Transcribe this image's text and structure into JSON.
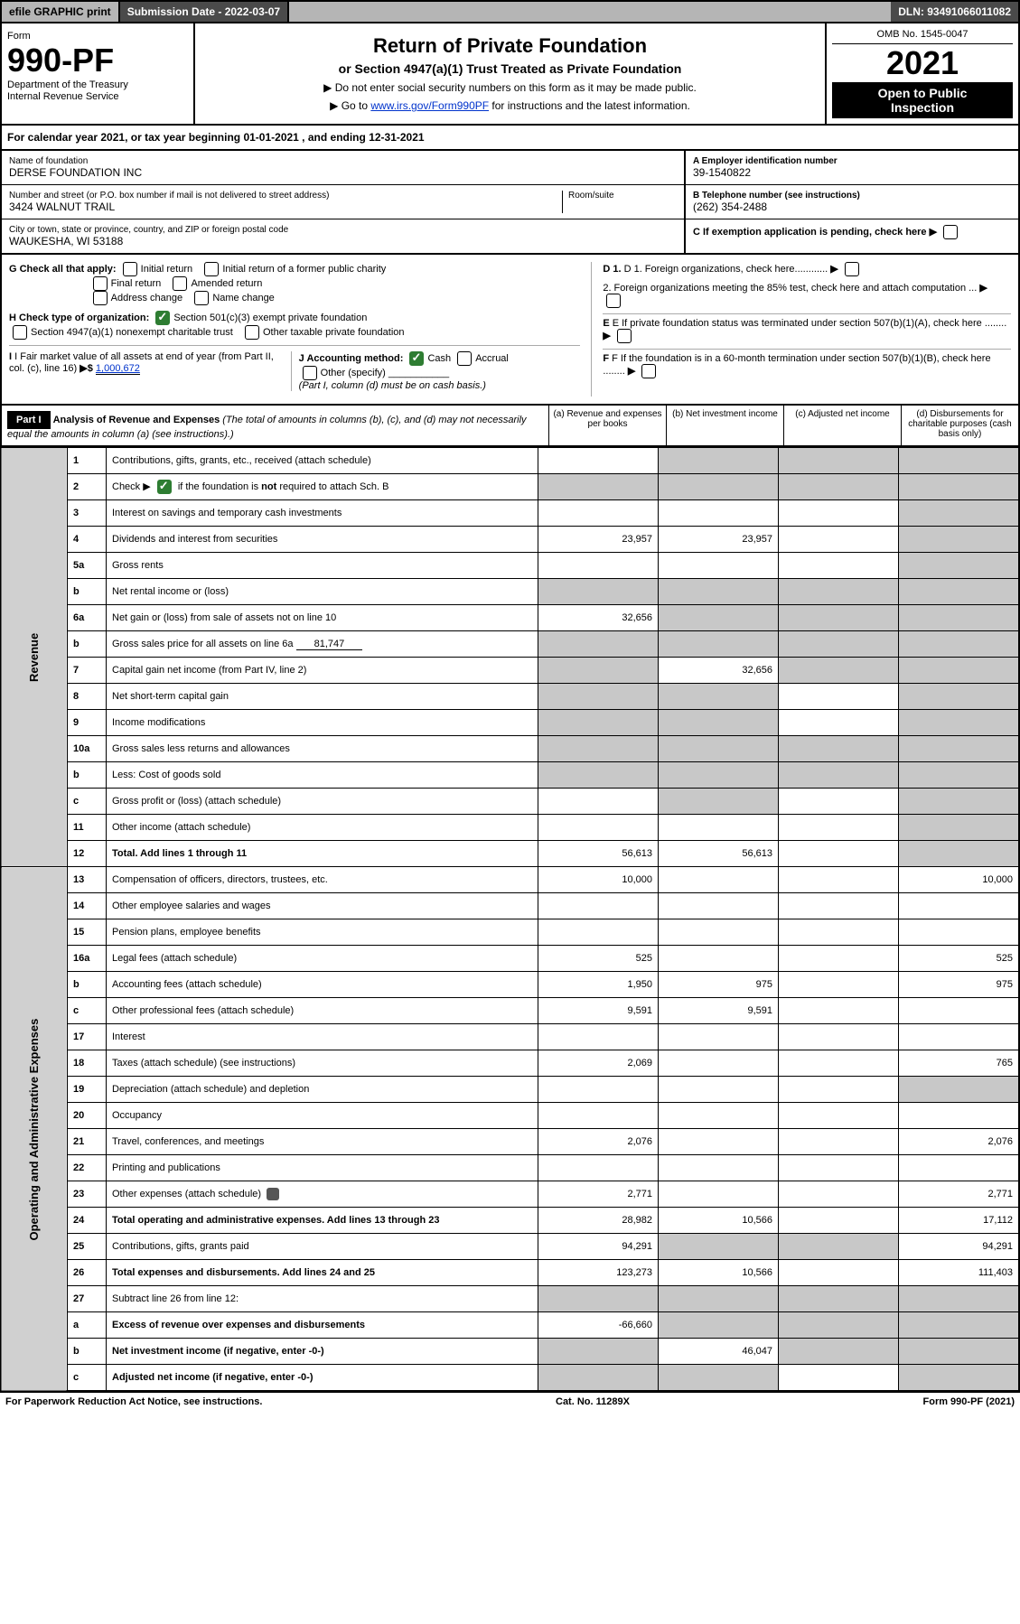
{
  "topbar": {
    "efile": "efile GRAPHIC print",
    "sublabel": "Submission Date - 2022-03-07",
    "dln": "DLN: 93491066011082"
  },
  "header": {
    "form_label": "Form",
    "form_number": "990-PF",
    "dept1": "Department of the Treasury",
    "dept2": "Internal Revenue Service",
    "title": "Return of Private Foundation",
    "subtitle": "or Section 4947(a)(1) Trust Treated as Private Foundation",
    "note1": "▶ Do not enter social security numbers on this form as it may be made public.",
    "note2_pre": "▶ Go to ",
    "note2_link": "www.irs.gov/Form990PF",
    "note2_post": " for instructions and the latest information.",
    "omb": "OMB No. 1545-0047",
    "year": "2021",
    "open1": "Open to Public",
    "open2": "Inspection"
  },
  "calyear": {
    "text_pre": "For calendar year 2021, or tax year beginning ",
    "begin": "01-01-2021",
    "mid": " , and ending ",
    "end": "12-31-2021"
  },
  "info": {
    "name_label": "Name of foundation",
    "name": "DERSE FOUNDATION INC",
    "addr_label": "Number and street (or P.O. box number if mail is not delivered to street address)",
    "addr": "3424 WALNUT TRAIL",
    "room_label": "Room/suite",
    "city_label": "City or town, state or province, country, and ZIP or foreign postal code",
    "city": "WAUKESHA, WI 53188",
    "a_label": "A Employer identification number",
    "a_val": "39-1540822",
    "b_label": "B Telephone number (see instructions)",
    "b_val": "(262) 354-2488",
    "c_label": "C If exemption application is pending, check here",
    "d1": "D 1. Foreign organizations, check here............",
    "d2": "2. Foreign organizations meeting the 85% test, check here and attach computation ...",
    "e": "E If private foundation status was terminated under section 507(b)(1)(A), check here ........",
    "f": "F If the foundation is in a 60-month termination under section 507(b)(1)(B), check here ........"
  },
  "g": {
    "label": "G Check all that apply:",
    "opts": [
      "Initial return",
      "Final return",
      "Address change",
      "Initial return of a former public charity",
      "Amended return",
      "Name change"
    ]
  },
  "h": {
    "label": "H Check type of organization:",
    "opt1": "Section 501(c)(3) exempt private foundation",
    "opt2": "Section 4947(a)(1) nonexempt charitable trust",
    "opt3": "Other taxable private foundation"
  },
  "i": {
    "label": "I Fair market value of all assets at end of year (from Part II, col. (c), line 16)",
    "arrow": "▶$",
    "val": "1,000,672"
  },
  "j": {
    "label": "J Accounting method:",
    "cash": "Cash",
    "accrual": "Accrual",
    "other": "Other (specify)",
    "note": "(Part I, column (d) must be on cash basis.)"
  },
  "part1": {
    "label": "Part I",
    "title": "Analysis of Revenue and Expenses",
    "title_note": "(The total of amounts in columns (b), (c), and (d) may not necessarily equal the amounts in column (a) (see instructions).)",
    "cols": {
      "a": "(a) Revenue and expenses per books",
      "b": "(b) Net investment income",
      "c": "(c) Adjusted net income",
      "d": "(d) Disbursements for charitable purposes (cash basis only)"
    }
  },
  "section_labels": {
    "revenue": "Revenue",
    "expenses": "Operating and Administrative Expenses"
  },
  "rows": [
    {
      "n": "1",
      "d": "Contributions, gifts, grants, etc., received (attach schedule)",
      "a": "",
      "b": "",
      "c": "",
      "dd": "",
      "shade_bcd": true,
      "sec": "rev"
    },
    {
      "n": "2",
      "d": "Check ▶ ☑ if the foundation is not required to attach Sch. B",
      "a": "",
      "b": "",
      "c": "",
      "dd": "",
      "shade_all": true,
      "sec": "rev",
      "checked": true
    },
    {
      "n": "3",
      "d": "Interest on savings and temporary cash investments",
      "a": "",
      "b": "",
      "c": "",
      "dd": "",
      "shade_d": true,
      "sec": "rev"
    },
    {
      "n": "4",
      "d": "Dividends and interest from securities",
      "a": "23,957",
      "b": "23,957",
      "c": "",
      "dd": "",
      "shade_d": true,
      "sec": "rev"
    },
    {
      "n": "5a",
      "d": "Gross rents",
      "a": "",
      "b": "",
      "c": "",
      "dd": "",
      "shade_d": true,
      "sec": "rev"
    },
    {
      "n": "b",
      "d": "Net rental income or (loss)",
      "a": "",
      "b": "",
      "c": "",
      "dd": "",
      "shade_all": true,
      "sec": "rev",
      "inset": true
    },
    {
      "n": "6a",
      "d": "Net gain or (loss) from sale of assets not on line 10",
      "a": "32,656",
      "b": "",
      "c": "",
      "dd": "",
      "shade_bcd": true,
      "sec": "rev"
    },
    {
      "n": "b",
      "d": "Gross sales price for all assets on line 6a",
      "a": "",
      "b": "",
      "c": "",
      "dd": "",
      "shade_all": true,
      "sec": "rev",
      "inset": true,
      "inset_val": "81,747"
    },
    {
      "n": "7",
      "d": "Capital gain net income (from Part IV, line 2)",
      "a": "",
      "b": "32,656",
      "c": "",
      "dd": "",
      "shade_acd": true,
      "sec": "rev"
    },
    {
      "n": "8",
      "d": "Net short-term capital gain",
      "a": "",
      "b": "",
      "c": "",
      "dd": "",
      "shade_abd": true,
      "sec": "rev"
    },
    {
      "n": "9",
      "d": "Income modifications",
      "a": "",
      "b": "",
      "c": "",
      "dd": "",
      "shade_abd": true,
      "sec": "rev"
    },
    {
      "n": "10a",
      "d": "Gross sales less returns and allowances",
      "a": "",
      "b": "",
      "c": "",
      "dd": "",
      "shade_all": true,
      "sec": "rev",
      "inset": true
    },
    {
      "n": "b",
      "d": "Less: Cost of goods sold",
      "a": "",
      "b": "",
      "c": "",
      "dd": "",
      "shade_all": true,
      "sec": "rev",
      "inset": true
    },
    {
      "n": "c",
      "d": "Gross profit or (loss) (attach schedule)",
      "a": "",
      "b": "",
      "c": "",
      "dd": "",
      "shade_bd": true,
      "sec": "rev"
    },
    {
      "n": "11",
      "d": "Other income (attach schedule)",
      "a": "",
      "b": "",
      "c": "",
      "dd": "",
      "shade_d": true,
      "sec": "rev"
    },
    {
      "n": "12",
      "d": "Total. Add lines 1 through 11",
      "a": "56,613",
      "b": "56,613",
      "c": "",
      "dd": "",
      "bold": true,
      "shade_d": true,
      "sec": "rev"
    },
    {
      "n": "13",
      "d": "Compensation of officers, directors, trustees, etc.",
      "a": "10,000",
      "b": "",
      "c": "",
      "dd": "10,000",
      "sec": "exp"
    },
    {
      "n": "14",
      "d": "Other employee salaries and wages",
      "a": "",
      "b": "",
      "c": "",
      "dd": "",
      "sec": "exp"
    },
    {
      "n": "15",
      "d": "Pension plans, employee benefits",
      "a": "",
      "b": "",
      "c": "",
      "dd": "",
      "sec": "exp"
    },
    {
      "n": "16a",
      "d": "Legal fees (attach schedule)",
      "a": "525",
      "b": "",
      "c": "",
      "dd": "525",
      "sec": "exp"
    },
    {
      "n": "b",
      "d": "Accounting fees (attach schedule)",
      "a": "1,950",
      "b": "975",
      "c": "",
      "dd": "975",
      "sec": "exp"
    },
    {
      "n": "c",
      "d": "Other professional fees (attach schedule)",
      "a": "9,591",
      "b": "9,591",
      "c": "",
      "dd": "",
      "sec": "exp"
    },
    {
      "n": "17",
      "d": "Interest",
      "a": "",
      "b": "",
      "c": "",
      "dd": "",
      "sec": "exp"
    },
    {
      "n": "18",
      "d": "Taxes (attach schedule) (see instructions)",
      "a": "2,069",
      "b": "",
      "c": "",
      "dd": "765",
      "sec": "exp"
    },
    {
      "n": "19",
      "d": "Depreciation (attach schedule) and depletion",
      "a": "",
      "b": "",
      "c": "",
      "dd": "",
      "shade_d": true,
      "sec": "exp"
    },
    {
      "n": "20",
      "d": "Occupancy",
      "a": "",
      "b": "",
      "c": "",
      "dd": "",
      "sec": "exp"
    },
    {
      "n": "21",
      "d": "Travel, conferences, and meetings",
      "a": "2,076",
      "b": "",
      "c": "",
      "dd": "2,076",
      "sec": "exp"
    },
    {
      "n": "22",
      "d": "Printing and publications",
      "a": "",
      "b": "",
      "c": "",
      "dd": "",
      "sec": "exp"
    },
    {
      "n": "23",
      "d": "Other expenses (attach schedule)",
      "a": "2,771",
      "b": "",
      "c": "",
      "dd": "2,771",
      "sec": "exp",
      "attach": true
    },
    {
      "n": "24",
      "d": "Total operating and administrative expenses. Add lines 13 through 23",
      "a": "28,982",
      "b": "10,566",
      "c": "",
      "dd": "17,112",
      "bold": true,
      "sec": "exp"
    },
    {
      "n": "25",
      "d": "Contributions, gifts, grants paid",
      "a": "94,291",
      "b": "",
      "c": "",
      "dd": "94,291",
      "shade_bc": true,
      "sec": "exp"
    },
    {
      "n": "26",
      "d": "Total expenses and disbursements. Add lines 24 and 25",
      "a": "123,273",
      "b": "10,566",
      "c": "",
      "dd": "111,403",
      "bold": true,
      "sec": "exp"
    },
    {
      "n": "27",
      "d": "Subtract line 26 from line 12:",
      "a": "",
      "b": "",
      "c": "",
      "dd": "",
      "shade_all": true,
      "sec": "none"
    },
    {
      "n": "a",
      "d": "Excess of revenue over expenses and disbursements",
      "a": "-66,660",
      "b": "",
      "c": "",
      "dd": "",
      "bold": true,
      "shade_bcd": true,
      "sec": "none"
    },
    {
      "n": "b",
      "d": "Net investment income (if negative, enter -0-)",
      "a": "",
      "b": "46,047",
      "c": "",
      "dd": "",
      "bold": true,
      "shade_acd": true,
      "sec": "none"
    },
    {
      "n": "c",
      "d": "Adjusted net income (if negative, enter -0-)",
      "a": "",
      "b": "",
      "c": "",
      "dd": "",
      "bold": true,
      "shade_abd": true,
      "sec": "none"
    }
  ],
  "footer": {
    "left": "For Paperwork Reduction Act Notice, see instructions.",
    "mid": "Cat. No. 11289X",
    "right": "Form 990-PF (2021)"
  }
}
